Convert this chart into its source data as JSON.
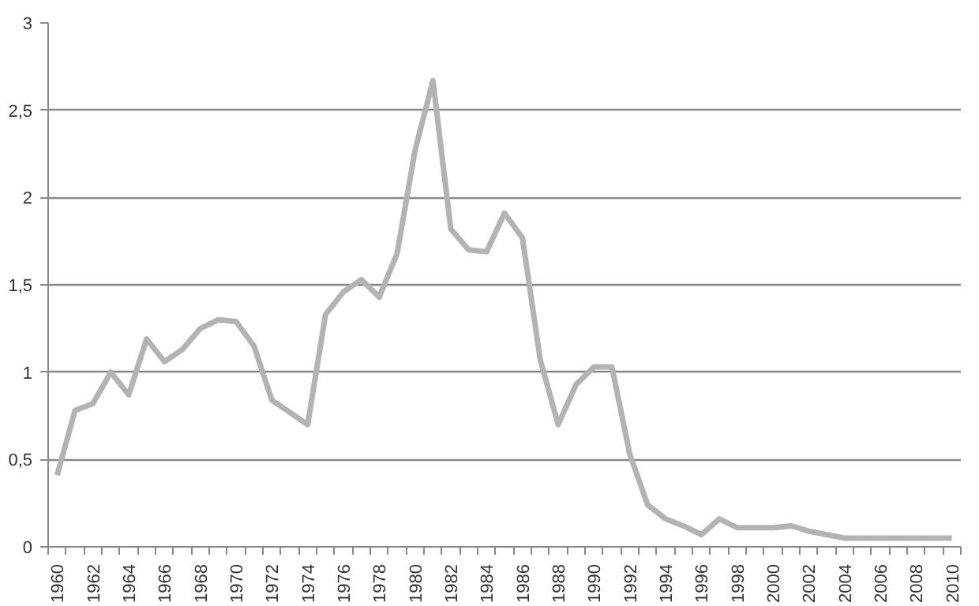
{
  "chart_data": {
    "type": "line",
    "categories": [
      "1960",
      null,
      "1962",
      null,
      "1964",
      null,
      "1966",
      null,
      "1968",
      null,
      "1970",
      null,
      "1972",
      null,
      "1974",
      null,
      "1976",
      null,
      "1978",
      null,
      "1980",
      null,
      "1982",
      null,
      "1984",
      null,
      "1986",
      null,
      "1988",
      null,
      "1990",
      null,
      "1992",
      null,
      "1994",
      null,
      "1996",
      null,
      "1998",
      null,
      "2000",
      null,
      "2002",
      null,
      "2004",
      null,
      "2006",
      null,
      "2008",
      null,
      "2010"
    ],
    "series": [
      {
        "color": "#b3b3b3",
        "values": [
          0.41,
          0.78,
          0.82,
          1.0,
          0.87,
          1.19,
          1.06,
          1.13,
          1.25,
          1.3,
          1.29,
          1.15,
          0.84,
          0.77,
          0.7,
          1.33,
          1.46,
          1.53,
          1.43,
          1.68,
          2.27,
          2.67,
          1.82,
          1.7,
          1.69,
          1.91,
          1.77,
          1.07,
          0.7,
          0.93,
          1.03,
          1.03,
          0.53,
          0.24,
          0.16,
          0.12,
          0.07,
          0.16,
          0.11,
          0.11,
          0.11,
          0.12,
          0.09,
          0.07,
          0.05,
          0.05,
          0.05,
          0.05,
          0.05,
          0.05,
          0.05
        ]
      }
    ],
    "ylim": [
      0,
      3
    ],
    "yticks": [
      0,
      {
        "value": 0.5,
        "label": "0,5"
      },
      1,
      {
        "value": 1.5,
        "label": "1,5"
      },
      2,
      {
        "value": 2.5,
        "label": "2,5"
      },
      3
    ],
    "grid": "y",
    "marker": "none",
    "line_style": "solid"
  }
}
